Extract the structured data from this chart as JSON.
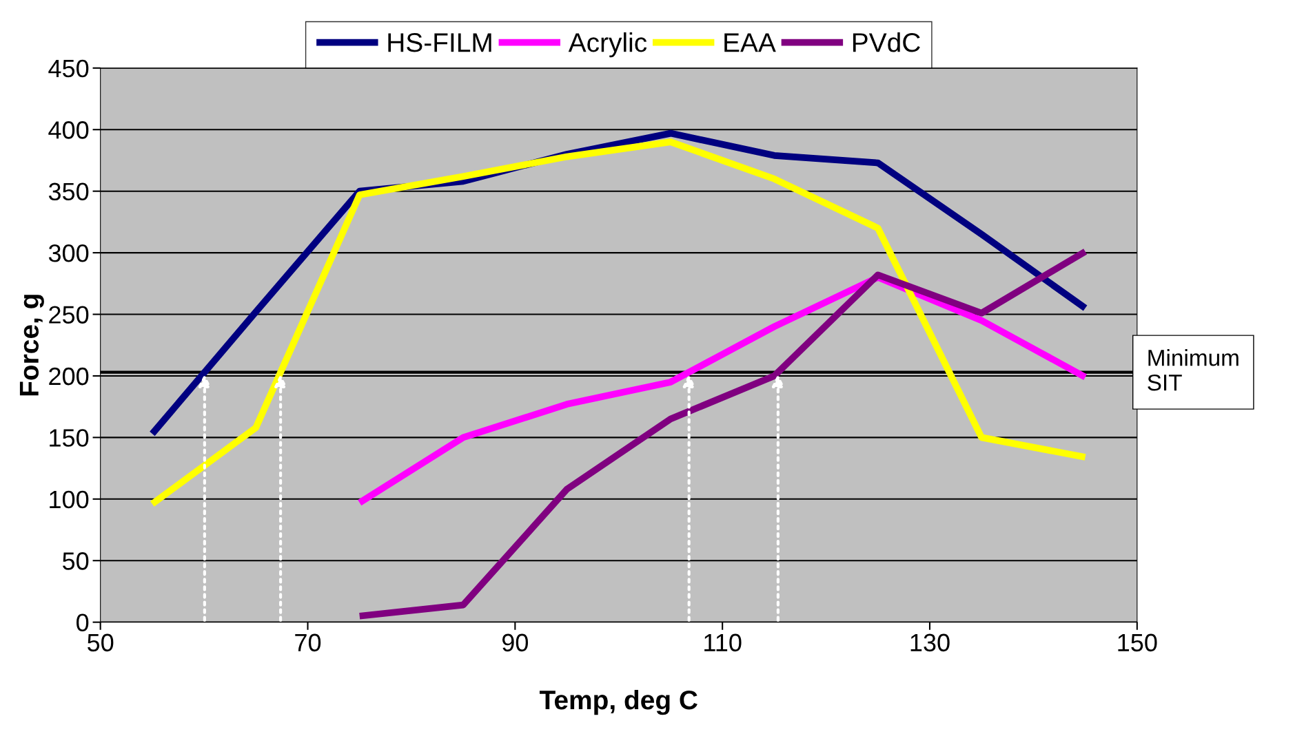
{
  "chart_data": {
    "type": "line",
    "xlabel": "Temp, deg C",
    "ylabel": "Force, g",
    "x": [
      55,
      65,
      75,
      85,
      95,
      105,
      115,
      125,
      135,
      145
    ],
    "series": [
      {
        "name": "HS-FILM",
        "color": "#000080",
        "values": [
          153,
          252,
          350,
          358,
          380,
          397,
          379,
          373,
          315,
          255
        ]
      },
      {
        "name": "Acrylic",
        "color": "#ff00ff",
        "x": [
          75,
          85,
          95,
          105,
          115,
          125,
          135,
          145
        ],
        "values": [
          97,
          150,
          177,
          195,
          240,
          280,
          245,
          199
        ]
      },
      {
        "name": "EAA",
        "color": "#ffff00",
        "values": [
          96,
          158,
          347,
          362,
          378,
          390,
          360,
          320,
          150,
          134
        ]
      },
      {
        "name": "PVdC",
        "color": "#800080",
        "x": [
          75,
          85,
          95,
          105,
          115,
          125,
          135,
          145
        ],
        "values": [
          5,
          14,
          108,
          165,
          200,
          282,
          251,
          301
        ]
      }
    ],
    "xlim": [
      50,
      150
    ],
    "xticks": [
      50,
      70,
      90,
      110,
      130,
      150
    ],
    "ylim": [
      0,
      450
    ],
    "yticks": [
      0,
      50,
      100,
      150,
      200,
      250,
      300,
      350,
      400,
      450
    ],
    "grid": "y",
    "legend": "top",
    "marker": "none",
    "line_style": "solid",
    "ref_lines": [
      {
        "axis": "y",
        "value": 203,
        "label": "Minimum\nSIT",
        "color": "#000000"
      }
    ]
  }
}
